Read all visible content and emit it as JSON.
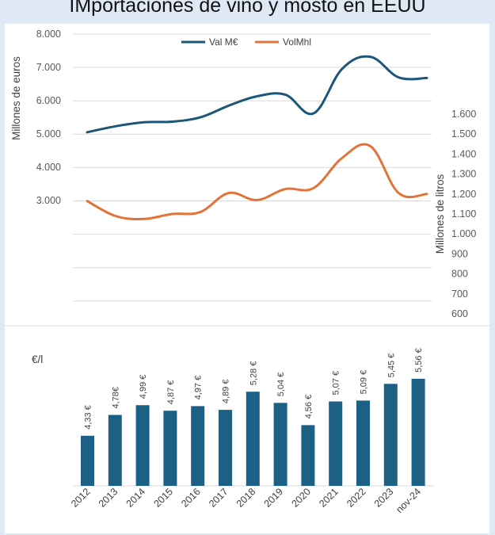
{
  "title": "IMportaciones de vino y mosto en EEUU",
  "colors": {
    "value_series": "#1c5679",
    "volume_series": "#e1743a",
    "bars": "#1c6185",
    "grid": "#d9d9d9",
    "background": "#dfe9f5"
  },
  "chart_data": [
    {
      "type": "line",
      "categories": [
        "2012",
        "2013",
        "2014",
        "2015",
        "2016",
        "2017",
        "2018",
        "2019",
        "2020",
        "2021",
        "2022",
        "2023",
        "nov-24"
      ],
      "series": [
        {
          "name": "Val M€",
          "axis": "left",
          "values": [
            5050,
            5230,
            5350,
            5370,
            5500,
            5850,
            6130,
            6180,
            5620,
            6950,
            7320,
            6700,
            6680
          ]
        },
        {
          "name": "VolMhl",
          "axis": "right",
          "values": [
            1.165,
            1.09,
            1.075,
            1.1,
            1.11,
            1.205,
            1.17,
            1.225,
            1.23,
            1.38,
            1.44,
            1.205,
            1.2
          ]
        }
      ],
      "ylabel": "Millones de euros",
      "y2label": "Millones de litros",
      "y_ticks": [
        "3.000",
        "4.000",
        "5.000",
        "6.000",
        "7.000",
        "8.000"
      ],
      "y2_ticks": [
        "600",
        "700",
        "800",
        "900",
        "1.000",
        "1.100",
        "1.200",
        "1.300",
        "1.400",
        "1.500",
        "1.600"
      ],
      "ylim": [
        3000,
        8000
      ],
      "y2lim": [
        0.6,
        1.6
      ],
      "legend": "top",
      "grid": true
    },
    {
      "type": "bar",
      "categories": [
        "2012",
        "2013",
        "2014",
        "2015",
        "2016",
        "2017",
        "2018",
        "2019",
        "2020",
        "2021",
        "2022",
        "2023",
        "nov-24"
      ],
      "values": [
        4.33,
        4.78,
        4.99,
        4.87,
        4.97,
        4.89,
        5.28,
        5.04,
        4.56,
        5.07,
        5.09,
        5.45,
        5.56
      ],
      "value_labels": [
        "4,33 €",
        "4,78€",
        "4,99 €",
        "4,87 €",
        "4,97 €",
        "4,89 €",
        "5,28 €",
        "5,04 €",
        "4,56 €",
        "5,07 €",
        "5,09 €",
        "5,45 €",
        "5,56 €"
      ],
      "ylabel": "€/l",
      "grid": false
    }
  ]
}
